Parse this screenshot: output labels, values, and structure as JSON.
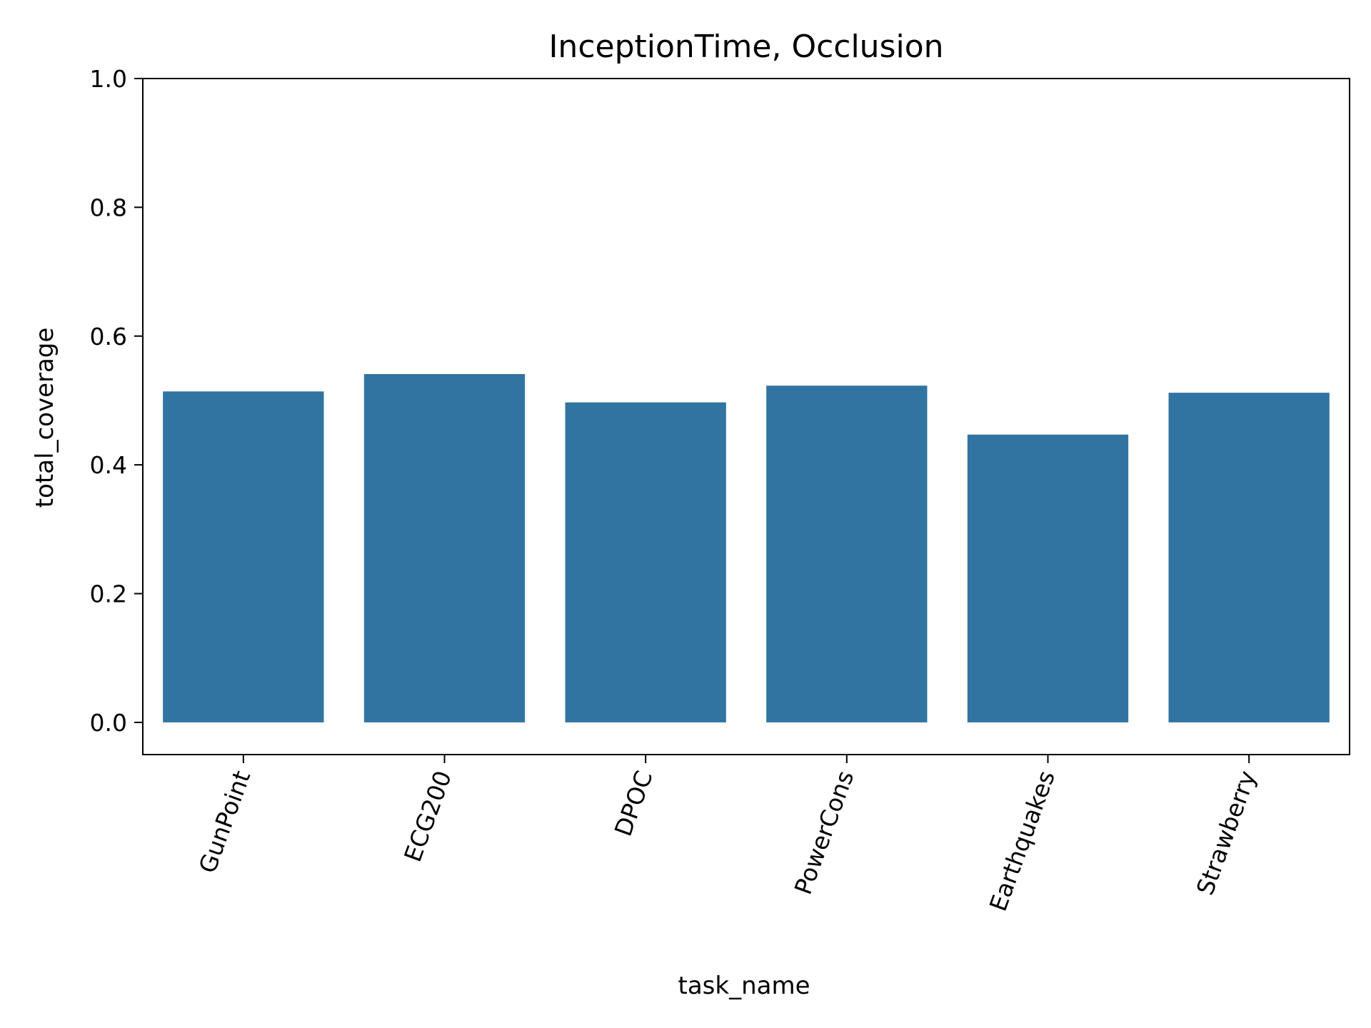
{
  "chart_data": {
    "type": "bar",
    "title": "InceptionTime, Occlusion",
    "xlabel": "task_name",
    "ylabel": "total_coverage",
    "categories": [
      "GunPoint",
      "ECG200",
      "DPOC",
      "PowerCons",
      "Earthquakes",
      "Strawberry"
    ],
    "values": [
      0.514,
      0.541,
      0.497,
      0.523,
      0.447,
      0.512
    ],
    "ylim": [
      -0.05,
      1.0
    ],
    "yticks": [
      0.0,
      0.2,
      0.4,
      0.6,
      0.8,
      1.0
    ],
    "ytick_labels": [
      "0.0",
      "0.2",
      "0.4",
      "0.6",
      "0.8",
      "1.0"
    ],
    "bar_color": "#3274a1",
    "grid": false,
    "legend": "none"
  }
}
